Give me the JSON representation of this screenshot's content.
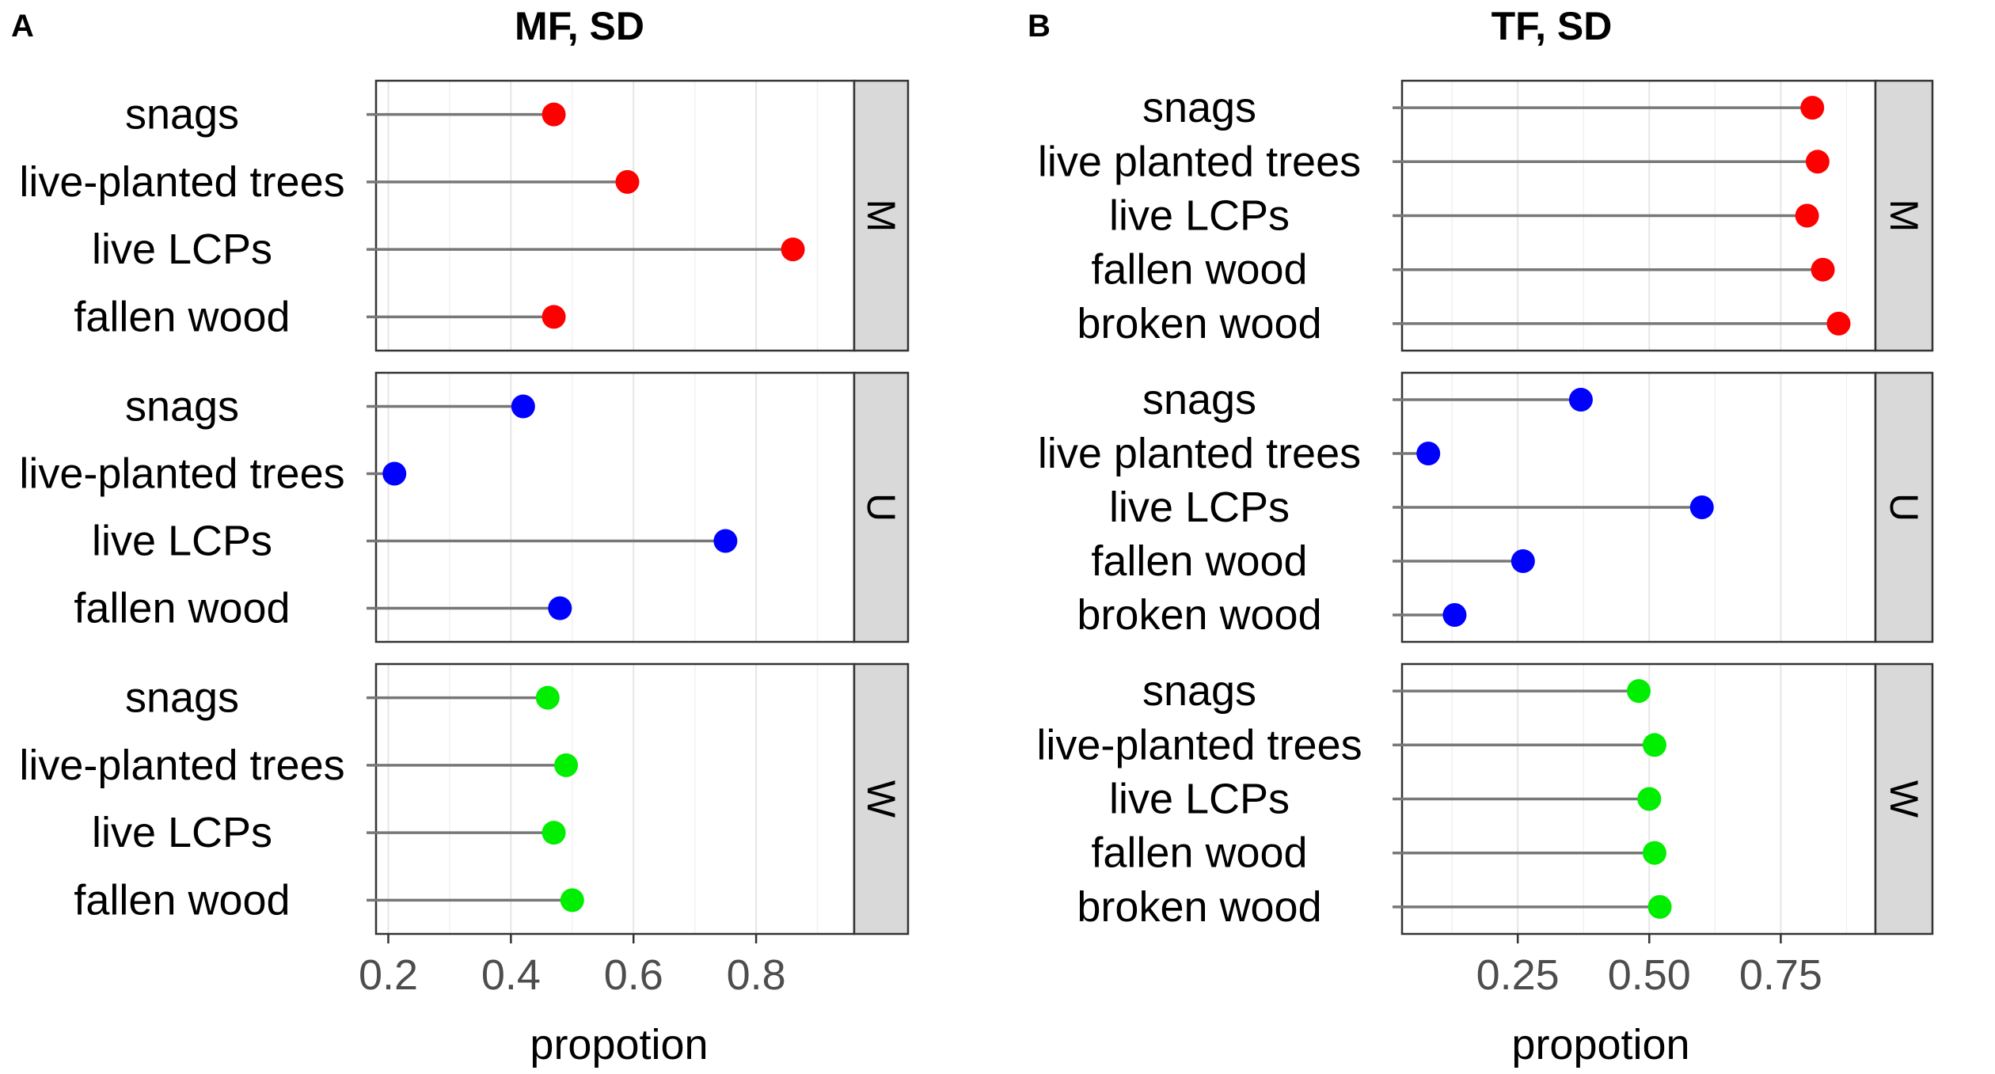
{
  "chart_data": [
    {
      "type": "lollipop",
      "panel_letter": "A",
      "title": "MF, SD",
      "xlabel": "propotion",
      "xlim": [
        0.18,
        0.96
      ],
      "xticks": [
        0.2,
        0.4,
        0.6,
        0.8
      ],
      "xtick_labels": [
        "0.2",
        "0.4",
        "0.6",
        "0.8"
      ],
      "facets": [
        {
          "label": "M",
          "color": "#ff0000",
          "categories": [
            "snags",
            "live-planted trees",
            "live LCPs",
            "fallen wood"
          ],
          "values": [
            0.47,
            0.59,
            0.86,
            0.47
          ]
        },
        {
          "label": "U",
          "color": "#0000ff",
          "categories": [
            "snags",
            "live-planted trees",
            "live LCPs",
            "fallen wood"
          ],
          "values": [
            0.42,
            0.21,
            0.75,
            0.48
          ]
        },
        {
          "label": "W",
          "color": "#00ee00",
          "categories": [
            "snags",
            "live-planted trees",
            "live LCPs",
            "fallen wood"
          ],
          "values": [
            0.46,
            0.49,
            0.47,
            0.5
          ]
        }
      ]
    },
    {
      "type": "lollipop",
      "panel_letter": "B",
      "title": "TF, SD",
      "xlabel": "propotion",
      "xlim": [
        0.03,
        0.93
      ],
      "xticks": [
        0.25,
        0.5,
        0.75
      ],
      "xtick_labels": [
        "0.25",
        "0.50",
        "0.75"
      ],
      "facets": [
        {
          "label": "M",
          "color": "#ff0000",
          "categories": [
            "snags",
            "live planted trees",
            "live LCPs",
            "fallen wood",
            "broken wood"
          ],
          "values": [
            0.81,
            0.82,
            0.8,
            0.83,
            0.86
          ]
        },
        {
          "label": "U",
          "color": "#0000ff",
          "categories": [
            "snags",
            "live planted trees",
            "live LCPs",
            "fallen wood",
            "broken wood"
          ],
          "values": [
            0.37,
            0.08,
            0.6,
            0.26,
            0.13
          ]
        },
        {
          "label": "W",
          "color": "#00ee00",
          "categories": [
            "snags",
            "live-planted trees",
            "live LCPs",
            "fallen wood",
            "broken wood"
          ],
          "values": [
            0.48,
            0.51,
            0.5,
            0.51,
            0.52
          ]
        }
      ]
    }
  ]
}
